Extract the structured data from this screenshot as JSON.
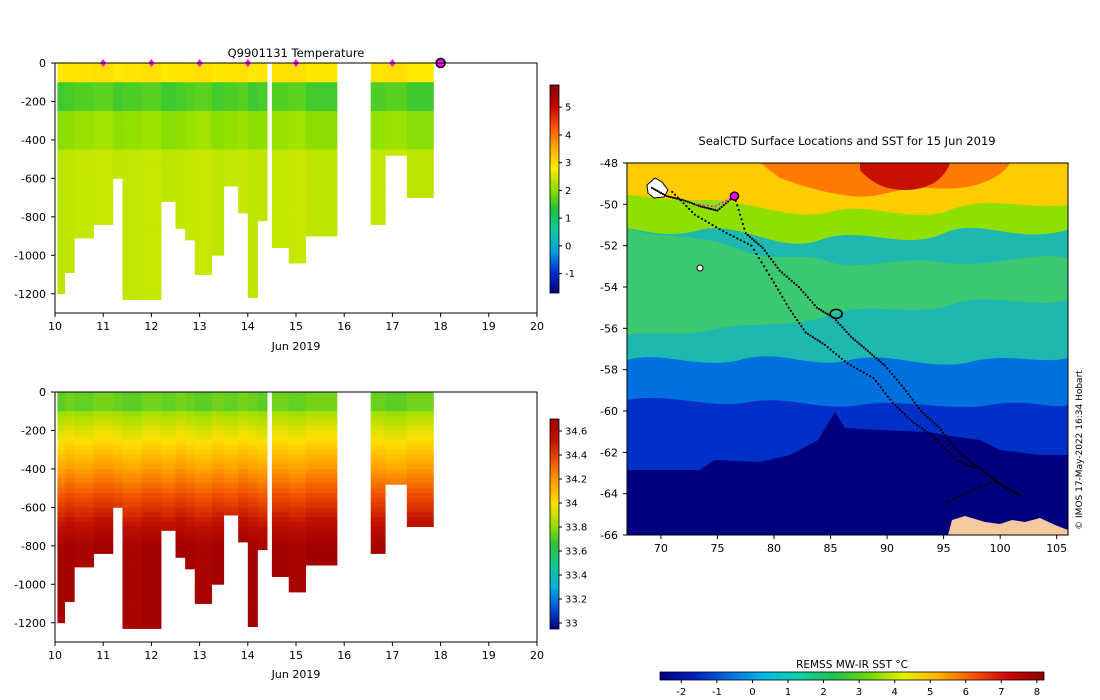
{
  "chart_data": [
    {
      "id": "temperature",
      "type": "heatmap",
      "title": "Q9901131  Temperature",
      "xlabel": "Jun 2019",
      "xlim": [
        10,
        20
      ],
      "ylim": [
        -1300,
        0
      ],
      "xticks": [
        10,
        11,
        12,
        13,
        14,
        15,
        16,
        17,
        18,
        19,
        20
      ],
      "yticks": [
        0,
        -200,
        -400,
        -600,
        -800,
        -1000,
        -1200
      ],
      "colorbar": {
        "range": [
          -1.7,
          5.8
        ],
        "ticks": [
          -1,
          0,
          1,
          2,
          3,
          4,
          5
        ]
      },
      "markers": [
        11,
        12,
        13,
        14,
        15,
        17
      ],
      "current_marker": 18,
      "profiles": [
        {
          "start": 10.05,
          "end": 10.2,
          "depth": 1200
        },
        {
          "start": 10.2,
          "end": 10.4,
          "depth": 1090
        },
        {
          "start": 10.4,
          "end": 10.8,
          "depth": 910
        },
        {
          "start": 10.8,
          "end": 11.2,
          "depth": 840
        },
        {
          "start": 11.2,
          "end": 11.4,
          "depth": 600
        },
        {
          "start": 11.4,
          "end": 11.8,
          "depth": 1230
        },
        {
          "start": 11.8,
          "end": 12.2,
          "depth": 1230
        },
        {
          "start": 12.2,
          "end": 12.5,
          "depth": 720
        },
        {
          "start": 12.5,
          "end": 12.7,
          "depth": 860
        },
        {
          "start": 12.7,
          "end": 12.9,
          "depth": 920
        },
        {
          "start": 12.9,
          "end": 13.25,
          "depth": 1100
        },
        {
          "start": 13.25,
          "end": 13.5,
          "depth": 1000
        },
        {
          "start": 13.5,
          "end": 13.8,
          "depth": 640
        },
        {
          "start": 13.8,
          "end": 14.0,
          "depth": 780
        },
        {
          "start": 14.0,
          "end": 14.2,
          "depth": 1220
        },
        {
          "start": 14.2,
          "end": 14.4,
          "depth": 820
        },
        {
          "start": 14.5,
          "end": 14.85,
          "depth": 960
        },
        {
          "start": 14.85,
          "end": 15.2,
          "depth": 1040
        },
        {
          "start": 15.2,
          "end": 15.85,
          "depth": 900
        },
        {
          "start": 16.55,
          "end": 16.85,
          "depth": 840
        },
        {
          "start": 16.85,
          "end": 17.3,
          "depth": 480
        },
        {
          "start": 17.3,
          "end": 17.85,
          "depth": 700
        }
      ]
    },
    {
      "id": "salinity",
      "type": "heatmap",
      "title": "",
      "xlabel": "Jun 2019",
      "xlim": [
        10,
        20
      ],
      "ylim": [
        -1300,
        0
      ],
      "xticks": [
        10,
        11,
        12,
        13,
        14,
        15,
        16,
        17,
        18,
        19,
        20
      ],
      "yticks": [
        0,
        -200,
        -400,
        -600,
        -800,
        -1000,
        -1200
      ],
      "colorbar": {
        "range": [
          32.95,
          34.7
        ],
        "ticks": [
          "33",
          "33.2",
          "33.4",
          "33.6",
          "33.8",
          "34",
          "34.2",
          "34.4",
          "34.6"
        ]
      },
      "profiles": [
        {
          "start": 10.05,
          "end": 10.2,
          "depth": 1200
        },
        {
          "start": 10.2,
          "end": 10.4,
          "depth": 1090
        },
        {
          "start": 10.4,
          "end": 10.8,
          "depth": 910
        },
        {
          "start": 10.8,
          "end": 11.2,
          "depth": 840
        },
        {
          "start": 11.2,
          "end": 11.4,
          "depth": 600
        },
        {
          "start": 11.4,
          "end": 11.8,
          "depth": 1230
        },
        {
          "start": 11.8,
          "end": 12.2,
          "depth": 1230
        },
        {
          "start": 12.2,
          "end": 12.5,
          "depth": 720
        },
        {
          "start": 12.5,
          "end": 12.7,
          "depth": 860
        },
        {
          "start": 12.7,
          "end": 12.9,
          "depth": 920
        },
        {
          "start": 12.9,
          "end": 13.25,
          "depth": 1100
        },
        {
          "start": 13.25,
          "end": 13.5,
          "depth": 1000
        },
        {
          "start": 13.5,
          "end": 13.8,
          "depth": 640
        },
        {
          "start": 13.8,
          "end": 14.0,
          "depth": 780
        },
        {
          "start": 14.0,
          "end": 14.2,
          "depth": 1220
        },
        {
          "start": 14.2,
          "end": 14.4,
          "depth": 820
        },
        {
          "start": 14.5,
          "end": 14.85,
          "depth": 960
        },
        {
          "start": 14.85,
          "end": 15.2,
          "depth": 1040
        },
        {
          "start": 15.2,
          "end": 15.85,
          "depth": 900
        },
        {
          "start": 16.55,
          "end": 16.85,
          "depth": 840
        },
        {
          "start": 16.85,
          "end": 17.3,
          "depth": 480
        },
        {
          "start": 17.3,
          "end": 17.85,
          "depth": 700
        }
      ]
    },
    {
      "id": "map",
      "type": "heatmap",
      "title": "SealCTD Surface Locations and SST for 15 Jun 2019",
      "xlim": [
        67,
        106
      ],
      "ylim": [
        -66,
        -48
      ],
      "xticks": [
        70,
        75,
        80,
        85,
        90,
        95,
        100,
        105
      ],
      "yticks": [
        -48,
        -50,
        -52,
        -54,
        -56,
        -58,
        -60,
        -62,
        -64,
        -66
      ],
      "credit": "© IMOS 17-May-2022 16:34 Hobart",
      "colorbar": {
        "label": "REMSS MW-IR SST °C",
        "range": [
          -2.6,
          8.2
        ],
        "ticks": [
          -2,
          -1,
          0,
          1,
          2,
          3,
          4,
          5,
          6,
          7,
          8
        ]
      },
      "current_position": [
        76.5,
        -49.6
      ]
    }
  ],
  "colors": {
    "temperature_scale": [
      "#00007f",
      "#0030d0",
      "#00a0e0",
      "#10c8a0",
      "#20c040",
      "#8ee000",
      "#ffee00",
      "#ffaa00",
      "#ff5000",
      "#c80000",
      "#8b0000"
    ],
    "salinity_scale": [
      "#00007f",
      "#0050d8",
      "#00b0e0",
      "#10c890",
      "#30c040",
      "#a0e000",
      "#ffe000",
      "#ffa000",
      "#f05000",
      "#c01000",
      "#a00000"
    ],
    "sst_scale": [
      "#00007f",
      "#0020c0",
      "#0070e0",
      "#00b8e8",
      "#10d0a8",
      "#20c050",
      "#70d800",
      "#e8f000",
      "#ffb000",
      "#ff5000",
      "#d00000",
      "#8b0000"
    ],
    "marker": "#ff00ff",
    "land": "#f6c8a0"
  }
}
